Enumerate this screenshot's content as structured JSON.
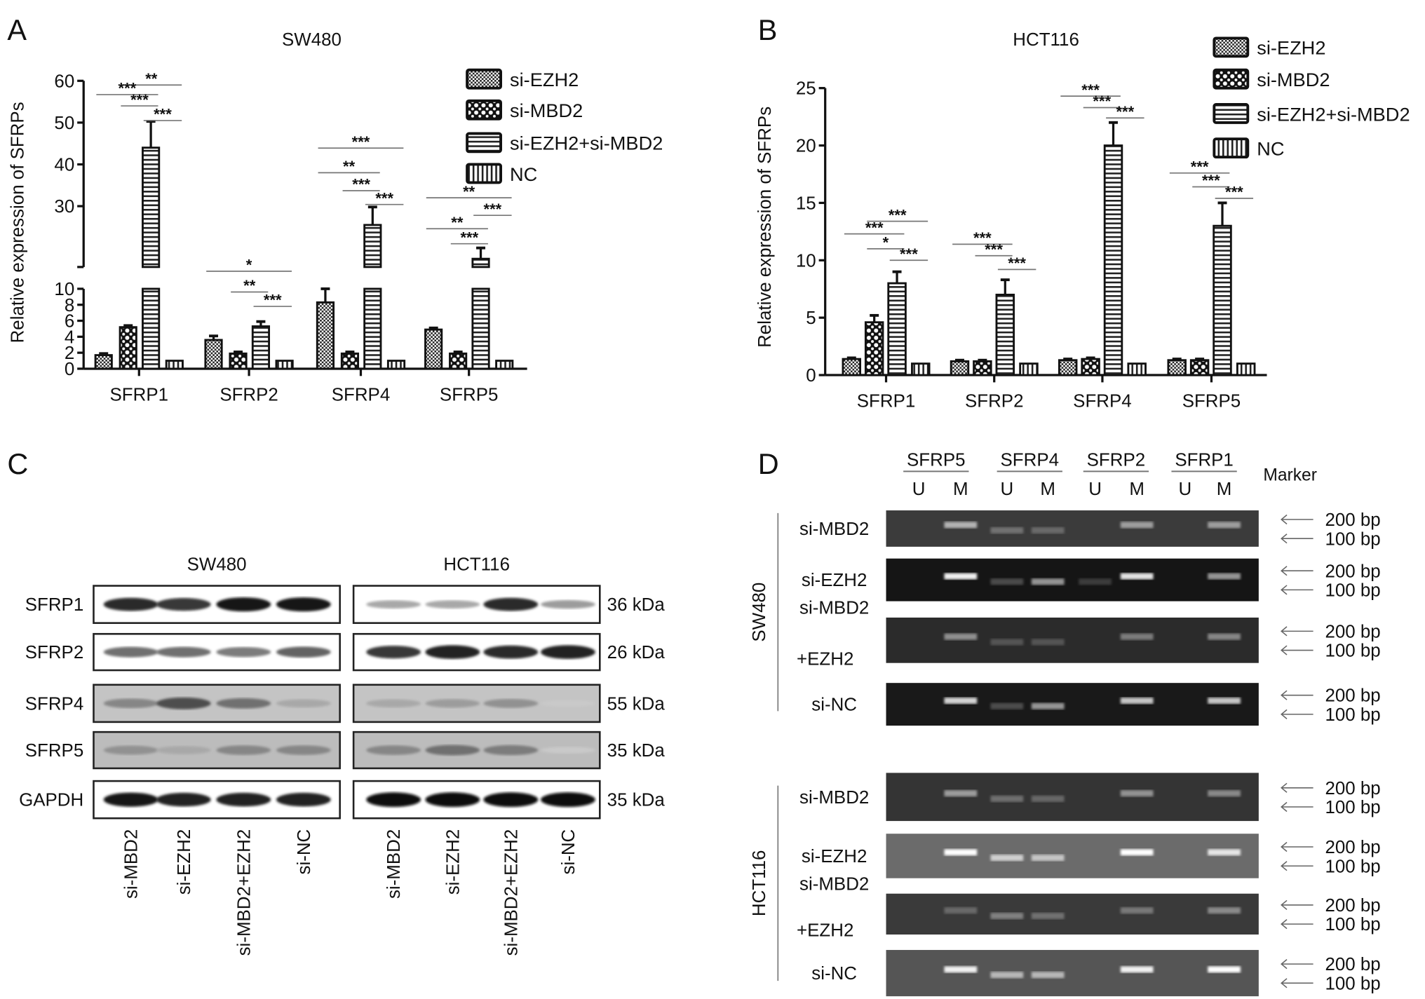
{
  "panels": {
    "A": "A",
    "B": "B",
    "C": "C",
    "D": "D"
  },
  "legend": [
    "si-EZH2",
    "si-MBD2",
    "si-EZH2+si-MBD2",
    "NC"
  ],
  "chart_data": [
    {
      "type": "bar",
      "panel": "A",
      "title": "SW480",
      "ylabel": "Relative expression of SFRPs",
      "xlabel": "",
      "categories": [
        "SFRP1",
        "SFRP2",
        "SFRP4",
        "SFRP5"
      ],
      "y_axis_break": {
        "lower": [
          0,
          10
        ],
        "upper": [
          15.4,
          60
        ]
      },
      "yticks_lower": [
        0,
        2,
        4,
        6,
        8,
        10
      ],
      "yticks_upper": [
        30,
        40,
        50,
        60
      ],
      "legend_position": "top-right",
      "series": [
        {
          "name": "si-EZH2",
          "values": [
            1.7,
            3.6,
            8.3,
            4.9
          ],
          "error": [
            0.2,
            0.5,
            1.7,
            0.2
          ]
        },
        {
          "name": "si-MBD2",
          "values": [
            5.2,
            1.9,
            1.9,
            1.9
          ],
          "error": [
            0.2,
            0.2,
            0.2,
            0.2
          ]
        },
        {
          "name": "si-EZH2+si-MBD2",
          "values": [
            44.0,
            5.3,
            25.5,
            17.4
          ],
          "error": [
            6.3,
            0.6,
            4.3,
            2.6
          ]
        },
        {
          "name": "NC",
          "values": [
            1.0,
            1.0,
            1.0,
            1.0
          ],
          "error": [
            0,
            0,
            0,
            0
          ]
        }
      ],
      "significance": [
        {
          "group": 0,
          "from": 1,
          "to": 3,
          "level": 59,
          "label": "**"
        },
        {
          "group": 0,
          "from": 0,
          "to": 2,
          "level": 56.7,
          "label": "***"
        },
        {
          "group": 0,
          "from": 1,
          "to": 2,
          "level": 54,
          "label": "***"
        },
        {
          "group": 0,
          "from": 2,
          "to": 3,
          "level": 50.5,
          "label": "***"
        },
        {
          "group": 1,
          "from": 0,
          "to": 3,
          "level": 12.2,
          "label": "*"
        },
        {
          "group": 1,
          "from": 1,
          "to": 2,
          "level": 9.6,
          "label": "**"
        },
        {
          "group": 1,
          "from": 2,
          "to": 3,
          "level": 7.8,
          "label": "***"
        },
        {
          "group": 2,
          "from": 0,
          "to": 3,
          "level": 43.9,
          "label": "***"
        },
        {
          "group": 2,
          "from": 0,
          "to": 2,
          "level": 38,
          "label": "**"
        },
        {
          "group": 2,
          "from": 1,
          "to": 2,
          "level": 33.7,
          "label": "***"
        },
        {
          "group": 2,
          "from": 2,
          "to": 3,
          "level": 30.4,
          "label": "***"
        },
        {
          "group": 3,
          "from": 0,
          "to": 3,
          "level": 32,
          "label": "**"
        },
        {
          "group": 3,
          "from": 2,
          "to": 3,
          "level": 27.8,
          "label": "***"
        },
        {
          "group": 3,
          "from": 0,
          "to": 2,
          "level": 24.6,
          "label": "**"
        },
        {
          "group": 3,
          "from": 1,
          "to": 2,
          "level": 21,
          "label": "***"
        }
      ]
    },
    {
      "type": "bar",
      "panel": "B",
      "title": "HCT116",
      "ylabel": "Relative expression of SFRPs",
      "xlabel": "",
      "categories": [
        "SFRP1",
        "SFRP2",
        "SFRP4",
        "SFRP5"
      ],
      "ylim": [
        0,
        25
      ],
      "yticks": [
        0,
        5,
        10,
        15,
        20,
        25
      ],
      "legend_position": "top-right",
      "series": [
        {
          "name": "si-EZH2",
          "values": [
            1.4,
            1.2,
            1.3,
            1.3
          ],
          "error": [
            0.1,
            0.1,
            0.1,
            0.1
          ]
        },
        {
          "name": "si-MBD2",
          "values": [
            4.6,
            1.2,
            1.4,
            1.3
          ],
          "error": [
            0.6,
            0.1,
            0.1,
            0.1
          ]
        },
        {
          "name": "si-EZH2+si-MBD2",
          "values": [
            8.0,
            7.0,
            20.0,
            13.0
          ],
          "error": [
            1.0,
            1.3,
            2.0,
            2.0
          ]
        },
        {
          "name": "NC",
          "values": [
            1.0,
            1.0,
            1.0,
            1.0
          ],
          "error": [
            0,
            0,
            0,
            0
          ]
        }
      ],
      "significance": [
        {
          "group": 0,
          "from": 1,
          "to": 3,
          "level": 13.4,
          "label": "***"
        },
        {
          "group": 0,
          "from": 0,
          "to": 2,
          "level": 12.3,
          "label": "***"
        },
        {
          "group": 0,
          "from": 1,
          "to": 2,
          "level": 11,
          "label": "*"
        },
        {
          "group": 0,
          "from": 2,
          "to": 3,
          "level": 10,
          "label": "***"
        },
        {
          "group": 1,
          "from": 0,
          "to": 2,
          "level": 11.4,
          "label": "***"
        },
        {
          "group": 1,
          "from": 1,
          "to": 2,
          "level": 10.4,
          "label": "***"
        },
        {
          "group": 1,
          "from": 2,
          "to": 3,
          "level": 9.2,
          "label": "***"
        },
        {
          "group": 2,
          "from": 0,
          "to": 2,
          "level": 24.3,
          "label": "***"
        },
        {
          "group": 2,
          "from": 1,
          "to": 2,
          "level": 23.3,
          "label": "***"
        },
        {
          "group": 2,
          "from": 2,
          "to": 3,
          "level": 22.4,
          "label": "***"
        },
        {
          "group": 3,
          "from": 0,
          "to": 2,
          "level": 17.6,
          "label": "***"
        },
        {
          "group": 3,
          "from": 1,
          "to": 2,
          "level": 16.4,
          "label": "***"
        },
        {
          "group": 3,
          "from": 2,
          "to": 3,
          "level": 15.4,
          "label": "***"
        }
      ]
    }
  ],
  "western": {
    "cell_lines": [
      "SW480",
      "HCT116"
    ],
    "proteins": [
      "SFRP1",
      "SFRP2",
      "SFRP4",
      "SFRP5",
      "GAPDH"
    ],
    "sizes": [
      "36 kDa",
      "26 kDa",
      "55 kDa",
      "35 kDa",
      "35 kDa"
    ],
    "lanes": [
      "si-MBD2",
      "si-EZH2",
      "si-MBD2+EZH2",
      "si-NC"
    ],
    "band_intensity": {
      "SW480": [
        [
          0.85,
          0.8,
          0.95,
          0.95
        ],
        [
          0.55,
          0.55,
          0.5,
          0.6
        ],
        [
          0.45,
          0.7,
          0.55,
          0.3
        ],
        [
          0.4,
          0.3,
          0.45,
          0.45
        ],
        [
          0.95,
          0.9,
          0.9,
          0.9
        ]
      ],
      "HCT116": [
        [
          0.3,
          0.3,
          0.85,
          0.35
        ],
        [
          0.8,
          0.9,
          0.85,
          0.9
        ],
        [
          0.3,
          0.35,
          0.4,
          0.15
        ],
        [
          0.45,
          0.55,
          0.5,
          0.15
        ],
        [
          1,
          1,
          1,
          1
        ]
      ]
    },
    "background": [
      "#ffffff",
      "#ffffff",
      "#c4c4c4",
      "#bcbcbc",
      "#ffffff"
    ]
  },
  "msp": {
    "genes": [
      "SFRP5",
      "SFRP4",
      "SFRP2",
      "SFRP1"
    ],
    "lane_labels": [
      "U",
      "M"
    ],
    "marker_label": "Marker",
    "markers": [
      "200 bp",
      "100 bp"
    ],
    "groups": [
      {
        "cell_line": "SW480",
        "rows": [
          {
            "label": [
              "si-MBD2"
            ],
            "bg": "#3b3b3b",
            "bands": [
              0,
              0.7,
              0.35,
              0.3,
              0,
              0.6,
              0,
              0.6
            ]
          },
          {
            "label": [
              "si-EZH2"
            ],
            "bg": "#151515",
            "bands": [
              0,
              0.95,
              0.2,
              0.6,
              0.1,
              0.9,
              0,
              0.6
            ]
          },
          {
            "label": [
              "si-MBD2",
              "+EZH2"
            ],
            "bg": "#2b2b2b",
            "bands": [
              0,
              0.55,
              0.2,
              0.2,
              0,
              0.45,
              0,
              0.5
            ]
          },
          {
            "label": [
              "si-NC"
            ],
            "bg": "#191919",
            "bands": [
              0,
              0.85,
              0.2,
              0.6,
              0,
              0.8,
              0,
              0.8
            ]
          }
        ]
      },
      {
        "cell_line": "HCT116",
        "rows": [
          {
            "label": [
              "si-MBD2"
            ],
            "bg": "#343434",
            "bands": [
              0,
              0.6,
              0.35,
              0.3,
              0,
              0.55,
              0,
              0.5
            ]
          },
          {
            "label": [
              "si-EZH2"
            ],
            "bg": "#6b6b6b",
            "bands": [
              0,
              1,
              0.8,
              0.75,
              0,
              1,
              0,
              0.9
            ]
          },
          {
            "label": [
              "si-MBD2",
              "+EZH2"
            ],
            "bg": "#3a3a3a",
            "bands": [
              0,
              0.3,
              0.45,
              0.35,
              0,
              0.4,
              0,
              0.5
            ]
          },
          {
            "label": [
              "si-NC"
            ],
            "bg": "#555555",
            "bands": [
              0,
              0.95,
              0.7,
              0.7,
              0,
              0.95,
              0,
              1
            ]
          }
        ]
      }
    ]
  }
}
